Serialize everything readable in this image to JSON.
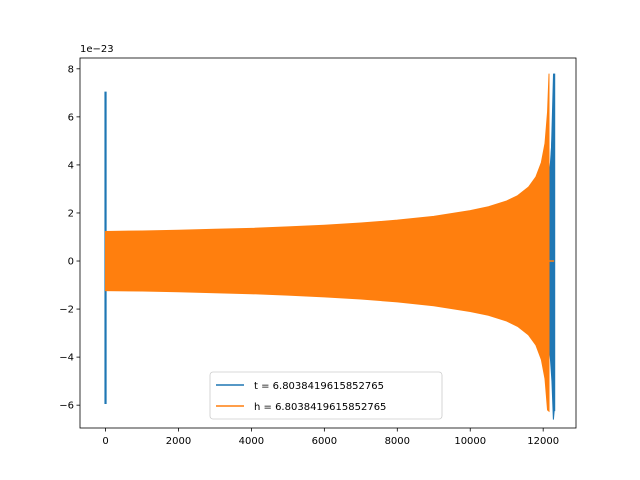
{
  "chart_data": {
    "type": "line",
    "title": "",
    "xlabel": "",
    "ylabel": "",
    "offset_text": "1e−23",
    "xlim": [
      -700,
      12900
    ],
    "ylim": [
      -6.95,
      8.45
    ],
    "xticks": [
      0,
      2000,
      4000,
      6000,
      8000,
      10000,
      12000
    ],
    "xtick_labels": [
      "0",
      "2000",
      "4000",
      "6000",
      "8000",
      "10000",
      "12000"
    ],
    "yticks": [
      -6,
      -4,
      -2,
      0,
      2,
      4,
      6,
      8
    ],
    "ytick_labels": [
      "−6",
      "−4",
      "−2",
      "0",
      "2",
      "4",
      "6",
      "8"
    ],
    "grid": false,
    "legend_position": "lower-center",
    "series": [
      {
        "name": "t = 6.8038419615852765",
        "color": "#1f77b4",
        "segments": [
          {
            "x": [
              0,
              0,
              0,
              0,
              0
            ],
            "y": [
              0,
              7.05,
              -5.95,
              1.2,
              -1.2
            ]
          },
          {
            "x": [
              12160,
              12300,
              12300,
              12300
            ],
            "y": [
              0,
              7.8,
              -6.25,
              0
            ]
          }
        ],
        "envelope_x": [
          12160,
          12200,
          12240,
          12280,
          12300
        ],
        "envelope_upper": [
          3.5,
          4.1,
          5.0,
          6.6,
          7.8
        ],
        "envelope_lower": [
          -3.5,
          -4.1,
          -5.0,
          -6.6,
          -6.25
        ]
      },
      {
        "name": "h = 6.8038419615852765",
        "color": "#ff7f0e",
        "envelope_x": [
          0,
          1000,
          2000,
          3000,
          4000,
          5000,
          6000,
          7000,
          8000,
          9000,
          10000,
          10500,
          11000,
          11300,
          11600,
          11800,
          11950,
          12050,
          12120,
          12160
        ],
        "envelope_upper": [
          1.23,
          1.25,
          1.28,
          1.32,
          1.36,
          1.42,
          1.49,
          1.58,
          1.7,
          1.86,
          2.1,
          2.26,
          2.5,
          2.72,
          3.08,
          3.5,
          4.1,
          4.9,
          6.2,
          7.8
        ],
        "envelope_lower": [
          -1.23,
          -1.25,
          -1.28,
          -1.32,
          -1.36,
          -1.42,
          -1.49,
          -1.58,
          -1.7,
          -1.86,
          -2.1,
          -2.26,
          -2.5,
          -2.72,
          -3.08,
          -3.5,
          -4.1,
          -4.9,
          -6.2,
          -6.25
        ],
        "tail_x": [
          12160,
          12300
        ],
        "tail_y": [
          0,
          0
        ]
      }
    ]
  }
}
